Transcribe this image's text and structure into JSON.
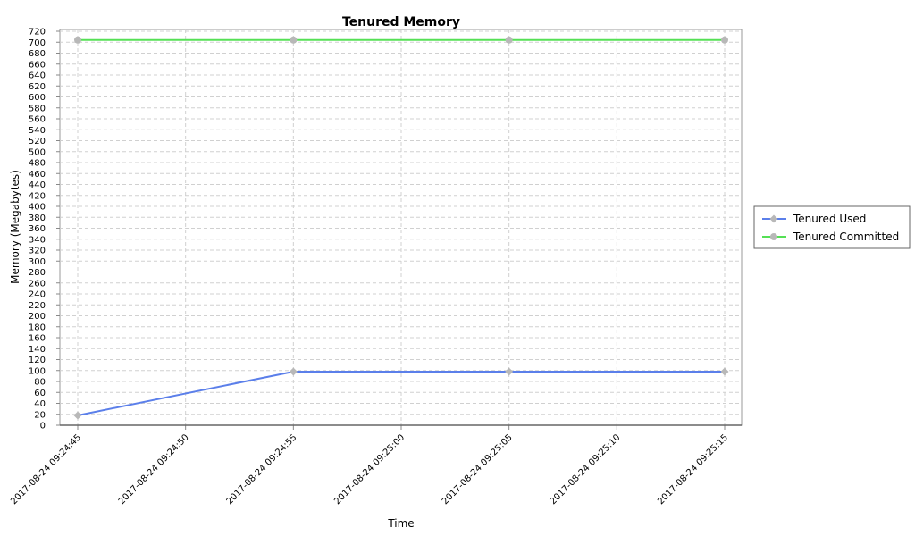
{
  "chart_data": {
    "type": "line",
    "title": "Tenured Memory",
    "xlabel": "Time",
    "ylabel": "Memory (Megabytes)",
    "ylim": [
      0,
      720
    ],
    "ytick_step": 20,
    "grid": true,
    "legend_position": "right",
    "x_ticks": [
      "2017-08-24 09:24:45",
      "2017-08-24 09:24:50",
      "2017-08-24 09:24:55",
      "2017-08-24 09:25:00",
      "2017-08-24 09:25:05",
      "2017-08-24 09:25:10",
      "2017-08-24 09:25:15"
    ],
    "x": [
      "2017-08-24 09:24:45",
      "2017-08-24 09:24:55",
      "2017-08-24 09:25:05",
      "2017-08-24 09:25:15"
    ],
    "series": [
      {
        "name": "Tenured Used",
        "color": "#5b7fea",
        "marker": "diamond",
        "values": [
          18,
          98,
          98,
          98
        ]
      },
      {
        "name": "Tenured Committed",
        "color": "#55e055",
        "marker": "circle",
        "values": [
          704,
          704,
          704,
          704
        ]
      }
    ]
  }
}
